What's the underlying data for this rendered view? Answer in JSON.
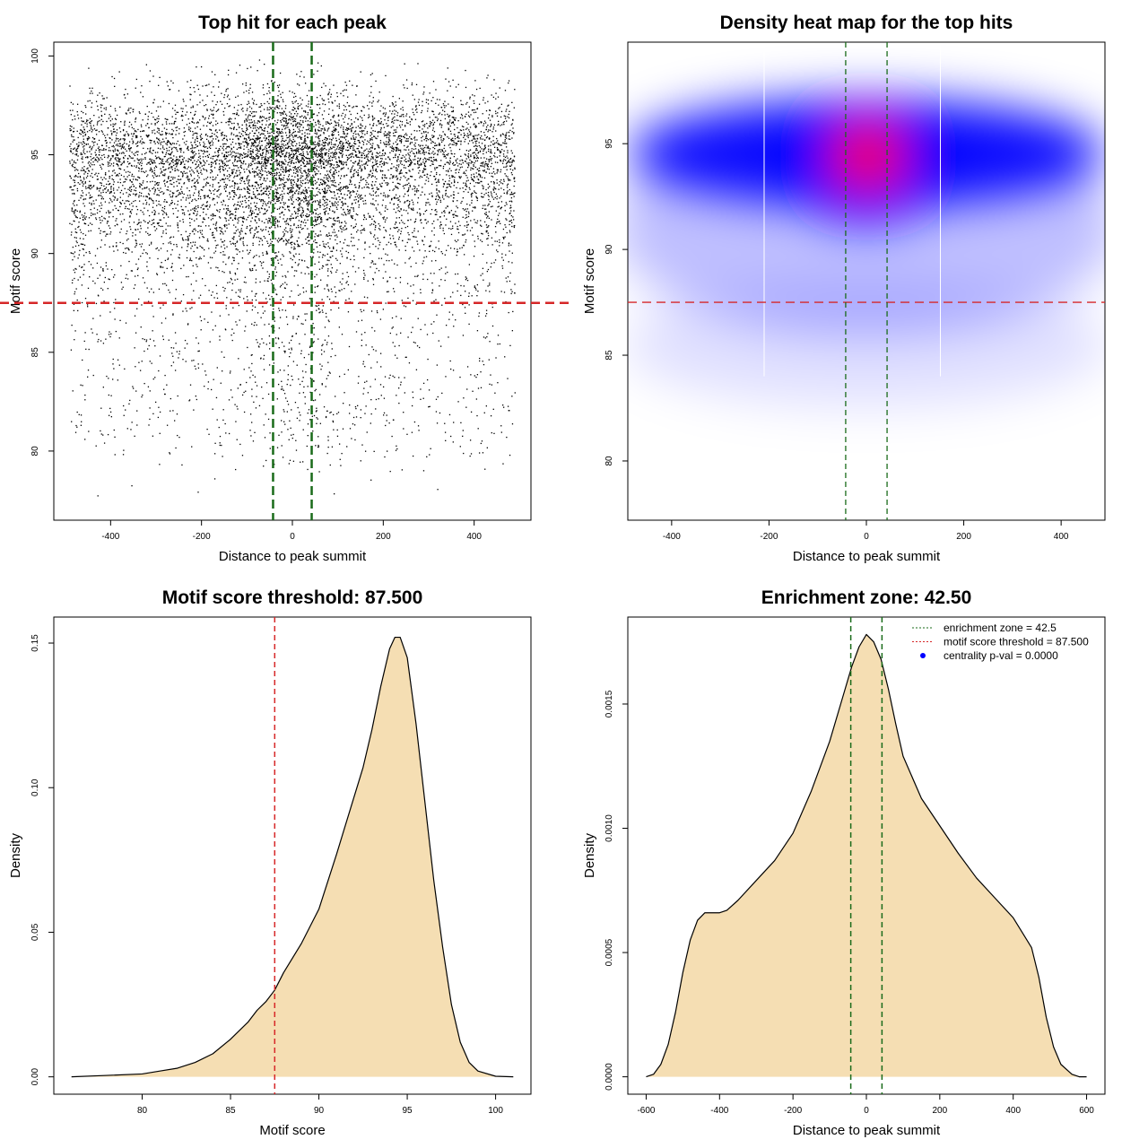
{
  "colors": {
    "axis": "#000000",
    "points": "#000000",
    "threshold_line": "#d62728",
    "zone_line": "#1a6b1a",
    "density_fill": "#f5deb3",
    "density_line": "#000000",
    "heat_low": "#ffffff",
    "heat_mid": "#0000ff",
    "heat_high": "#ff0000",
    "legend_point": "#0000ff"
  },
  "chart_data": [
    {
      "id": "scatter",
      "type": "scatter",
      "title": "Top hit for each peak",
      "xlabel": "Distance to peak summit",
      "ylabel": "Motif score",
      "xlim": [
        -525,
        525
      ],
      "ylim": [
        76.5,
        100.7
      ],
      "xticks": [
        -400,
        -200,
        0,
        200,
        400
      ],
      "xtick_labels": [
        "-400",
        "-200",
        "0",
        "200",
        "400"
      ],
      "yticks": [
        80,
        85,
        90,
        95,
        100
      ],
      "ytick_labels": [
        "80",
        "85",
        "90",
        "95",
        "100"
      ],
      "grid": false,
      "point_count": 9000,
      "x_range": [
        -490,
        490
      ],
      "score_mode": 94.5,
      "center_enrichment": true,
      "hlines": [
        {
          "y": 87.5,
          "color": "threshold_line",
          "dash": "dashed"
        }
      ],
      "vlines": [
        {
          "x": -42.5,
          "color": "zone_line",
          "dash": "dashed"
        },
        {
          "x": 42.5,
          "color": "zone_line",
          "dash": "dashed"
        }
      ]
    },
    {
      "id": "heatmap",
      "type": "heatmap",
      "title": "Density heat map for the top hits",
      "xlabel": "Distance to peak summit",
      "ylabel": "Motif score",
      "xlim": [
        -490,
        490
      ],
      "ylim": [
        77.2,
        99.8
      ],
      "xticks": [
        -400,
        -200,
        0,
        200,
        400
      ],
      "xtick_labels": [
        "-400",
        "-200",
        "0",
        "200",
        "400"
      ],
      "yticks": [
        80,
        85,
        90,
        95
      ],
      "ytick_labels": [
        "80",
        "85",
        "90",
        "95"
      ],
      "grid": false,
      "peak": {
        "x": 0,
        "y": 94.4
      },
      "hlines": [
        {
          "y": 87.5,
          "color": "threshold_line",
          "dash": "dashed"
        }
      ],
      "vlines": [
        {
          "x": -42.5,
          "color": "zone_line",
          "dash": "dashed"
        },
        {
          "x": 42.5,
          "color": "zone_line",
          "dash": "dashed"
        }
      ]
    },
    {
      "id": "score_density",
      "type": "area",
      "title": "Motif score threshold: 87.500",
      "xlabel": "Motif score",
      "ylabel": "Density",
      "xlim": [
        75,
        102
      ],
      "ylim": [
        -0.006,
        0.159
      ],
      "xticks": [
        80,
        85,
        90,
        95,
        100
      ],
      "xtick_labels": [
        "80",
        "85",
        "90",
        "95",
        "100"
      ],
      "yticks": [
        0,
        0.05,
        0.1,
        0.15
      ],
      "ytick_labels": [
        "0.00",
        "0.05",
        "0.10",
        "0.15"
      ],
      "grid": false,
      "x": [
        76,
        78,
        80,
        81,
        82,
        83,
        84,
        85,
        86,
        86.5,
        87,
        87.5,
        88,
        88.5,
        89,
        89.5,
        90,
        91,
        92,
        92.5,
        93,
        93.5,
        94,
        94.3,
        94.6,
        95,
        95.5,
        96,
        96.5,
        97,
        97.5,
        98,
        98.5,
        99,
        100,
        101
      ],
      "y": [
        0.0,
        0.0005,
        0.001,
        0.002,
        0.003,
        0.005,
        0.008,
        0.013,
        0.019,
        0.023,
        0.026,
        0.03,
        0.036,
        0.041,
        0.046,
        0.052,
        0.058,
        0.077,
        0.097,
        0.107,
        0.12,
        0.135,
        0.148,
        0.152,
        0.152,
        0.145,
        0.122,
        0.095,
        0.068,
        0.045,
        0.025,
        0.012,
        0.005,
        0.002,
        0.0002,
        0.0
      ],
      "vlines": [
        {
          "x": 87.5,
          "color": "threshold_line",
          "dash": "dashed"
        }
      ]
    },
    {
      "id": "distance_density",
      "type": "area",
      "title": "Enrichment zone: 42.50",
      "xlabel": "Distance to peak summit",
      "ylabel": "Density",
      "xlim": [
        -650,
        650
      ],
      "ylim": [
        -7e-05,
        0.00185
      ],
      "xticks": [
        -600,
        -400,
        -200,
        0,
        200,
        400,
        600
      ],
      "xtick_labels": [
        "-600",
        "-400",
        "-200",
        "0",
        "200",
        "400",
        "600"
      ],
      "yticks": [
        0,
        0.0005,
        0.001,
        0.0015
      ],
      "ytick_labels": [
        "0.0000",
        "0.0005",
        "0.0010",
        "0.0015"
      ],
      "grid": false,
      "x": [
        -600,
        -580,
        -560,
        -540,
        -520,
        -500,
        -480,
        -460,
        -440,
        -420,
        -400,
        -380,
        -350,
        -300,
        -250,
        -200,
        -150,
        -100,
        -60,
        -40,
        -20,
        0,
        20,
        40,
        60,
        80,
        100,
        150,
        200,
        250,
        300,
        350,
        400,
        450,
        470,
        490,
        510,
        530,
        560,
        580,
        600
      ],
      "y": [
        0.0,
        1e-05,
        5e-05,
        0.00013,
        0.00026,
        0.00042,
        0.00055,
        0.00063,
        0.00066,
        0.00066,
        0.00066,
        0.00067,
        0.00071,
        0.00079,
        0.00087,
        0.00098,
        0.00115,
        0.00135,
        0.00155,
        0.00165,
        0.00173,
        0.00178,
        0.00175,
        0.00168,
        0.00156,
        0.00142,
        0.00129,
        0.00112,
        0.00101,
        0.0009,
        0.0008,
        0.00072,
        0.00064,
        0.00052,
        0.0004,
        0.00024,
        0.00012,
        5e-05,
        1e-05,
        0.0,
        0.0
      ],
      "vlines": [
        {
          "x": -42.5,
          "color": "zone_line",
          "dash": "dashed"
        },
        {
          "x": 42.5,
          "color": "zone_line",
          "dash": "dashed"
        }
      ],
      "legend": {
        "position": "top-right",
        "entries": [
          {
            "label": "enrichment zone = 42.5",
            "color": "zone_line",
            "style": "dotted-line"
          },
          {
            "label": "motif score threshold = 87.500",
            "color": "threshold_line",
            "style": "dotted-line"
          },
          {
            "label": "centrality p-val = 0.0000",
            "color": "legend_point",
            "style": "point"
          }
        ]
      }
    }
  ]
}
